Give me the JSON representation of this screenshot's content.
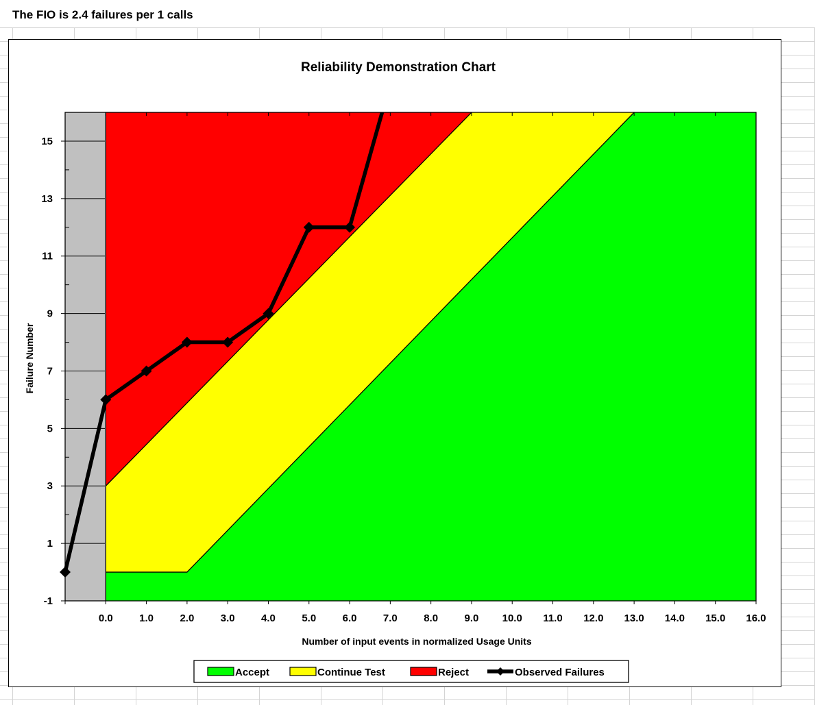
{
  "header": {
    "text": "The FIO is 2.4 failures per 1 calls"
  },
  "chart_data": {
    "type": "area",
    "title": "Reliability Demonstration Chart",
    "xlabel": "Number of input events in normalized Usage Units",
    "ylabel": "Failure Number",
    "xlim": [
      -1,
      16
    ],
    "ylim": [
      -1,
      16
    ],
    "x_ticks": [
      0,
      1,
      2,
      3,
      4,
      5,
      6,
      7,
      8,
      9,
      10,
      11,
      12,
      13,
      14,
      15,
      16
    ],
    "x_tick_labels": [
      "0.0",
      "1.0",
      "2.0",
      "3.0",
      "4.0",
      "5.0",
      "6.0",
      "7.0",
      "8.0",
      "9.0",
      "10.0",
      "11.0",
      "12.0",
      "13.0",
      "14.0",
      "15.0",
      "16.0"
    ],
    "y_ticks": [
      -1,
      1,
      3,
      5,
      7,
      9,
      11,
      13,
      15
    ],
    "y_tick_labels": [
      "-1",
      "1",
      "3",
      "5",
      "7",
      "9",
      "11",
      "13",
      "15"
    ],
    "regions": {
      "reject_boundary": [
        [
          0,
          3
        ],
        [
          9,
          16
        ]
      ],
      "accept_boundary": [
        [
          0,
          0
        ],
        [
          2,
          0
        ],
        [
          13,
          16
        ]
      ]
    },
    "series": [
      {
        "name": "Observed Failures",
        "x": [
          -1,
          0,
          1,
          2,
          3,
          4,
          5,
          6,
          6.8
        ],
        "y": [
          0,
          6,
          7,
          8,
          8,
          9,
          12,
          12,
          16
        ]
      }
    ],
    "legend": {
      "position": "bottom",
      "items": [
        {
          "label": "Accept",
          "color": "#00ff00",
          "kind": "box"
        },
        {
          "label": "Continue Test",
          "color": "#ffff00",
          "kind": "box"
        },
        {
          "label": "Reject",
          "color": "#ff0000",
          "kind": "box"
        },
        {
          "label": "Observed Failures",
          "color": "#000000",
          "kind": "line"
        }
      ]
    },
    "colors": {
      "accept": "#00ff00",
      "continue": "#ffff00",
      "reject": "#ff0000",
      "pre_zero": "#c0c0c0",
      "line": "#000000"
    },
    "grid": false
  }
}
